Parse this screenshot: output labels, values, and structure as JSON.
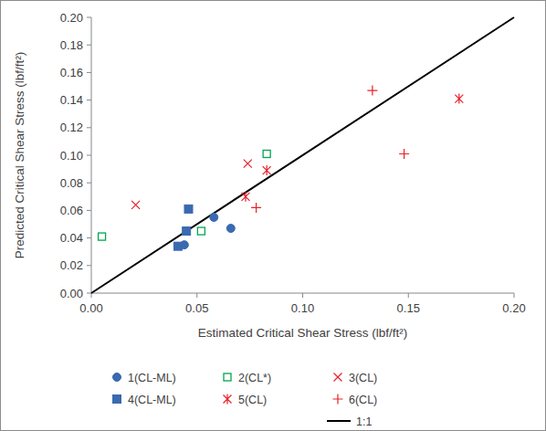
{
  "chart_data": {
    "type": "scatter",
    "x_label": "Estimated Critical Shear Stress (lbf/ft²)",
    "y_label": "Predicted Critical Shear Stress (lbf/ft²)",
    "xlim": [
      0,
      0.2
    ],
    "ylim": [
      0,
      0.2
    ],
    "xticks": [
      {
        "value": 0,
        "label": "0.00"
      },
      {
        "value": 0.05,
        "label": "0.05"
      },
      {
        "value": 0.1,
        "label": "0.10"
      },
      {
        "value": 0.15,
        "label": "0.15"
      },
      {
        "value": 0.2,
        "label": "0.20"
      }
    ],
    "yticks": [
      {
        "value": 0,
        "label": "0.00"
      },
      {
        "value": 0.02,
        "label": "0.02"
      },
      {
        "value": 0.04,
        "label": "0.04"
      },
      {
        "value": 0.06,
        "label": "0.06"
      },
      {
        "value": 0.08,
        "label": "0.08"
      },
      {
        "value": 0.1,
        "label": "0.10"
      },
      {
        "value": 0.12,
        "label": "0.12"
      },
      {
        "value": 0.14,
        "label": "0.14"
      },
      {
        "value": 0.16,
        "label": "0.16"
      },
      {
        "value": 0.18,
        "label": "0.18"
      },
      {
        "value": 0.2,
        "label": "0.20"
      }
    ],
    "grid": false,
    "legend": "bottom",
    "series": [
      {
        "name": "1(CL-ML)",
        "color": "#3a6ab0",
        "marker": "circle",
        "x": [
          0.058,
          0.066,
          0.044
        ],
        "values": [
          0.055,
          0.047,
          0.035
        ]
      },
      {
        "name": "2(CL*)",
        "color": "#00a651",
        "marker": "open-square",
        "x": [
          0.005,
          0.052,
          0.083
        ],
        "values": [
          0.041,
          0.045,
          0.101
        ]
      },
      {
        "name": "3(CL)",
        "color": "#e8202a",
        "marker": "x",
        "x": [
          0.021,
          0.074
        ],
        "values": [
          0.064,
          0.094
        ]
      },
      {
        "name": "4(CL-ML)",
        "color": "#3a6ab0",
        "marker": "square",
        "x": [
          0.046,
          0.045,
          0.041
        ],
        "values": [
          0.061,
          0.045,
          0.034
        ]
      },
      {
        "name": "5(CL)",
        "color": "#e8202a",
        "marker": "asterisk",
        "x": [
          0.073,
          0.083,
          0.174
        ],
        "values": [
          0.07,
          0.089,
          0.141
        ]
      },
      {
        "name": "6(CL)",
        "color": "#e8202a",
        "marker": "plus",
        "x": [
          0.078,
          0.133,
          0.148
        ],
        "values": [
          0.062,
          0.147,
          0.101
        ]
      },
      {
        "name": "1:1",
        "color": "#000000",
        "type": "line",
        "line_style": "solid",
        "x": [
          0,
          0.2
        ],
        "values": [
          0,
          0.2
        ]
      }
    ]
  }
}
